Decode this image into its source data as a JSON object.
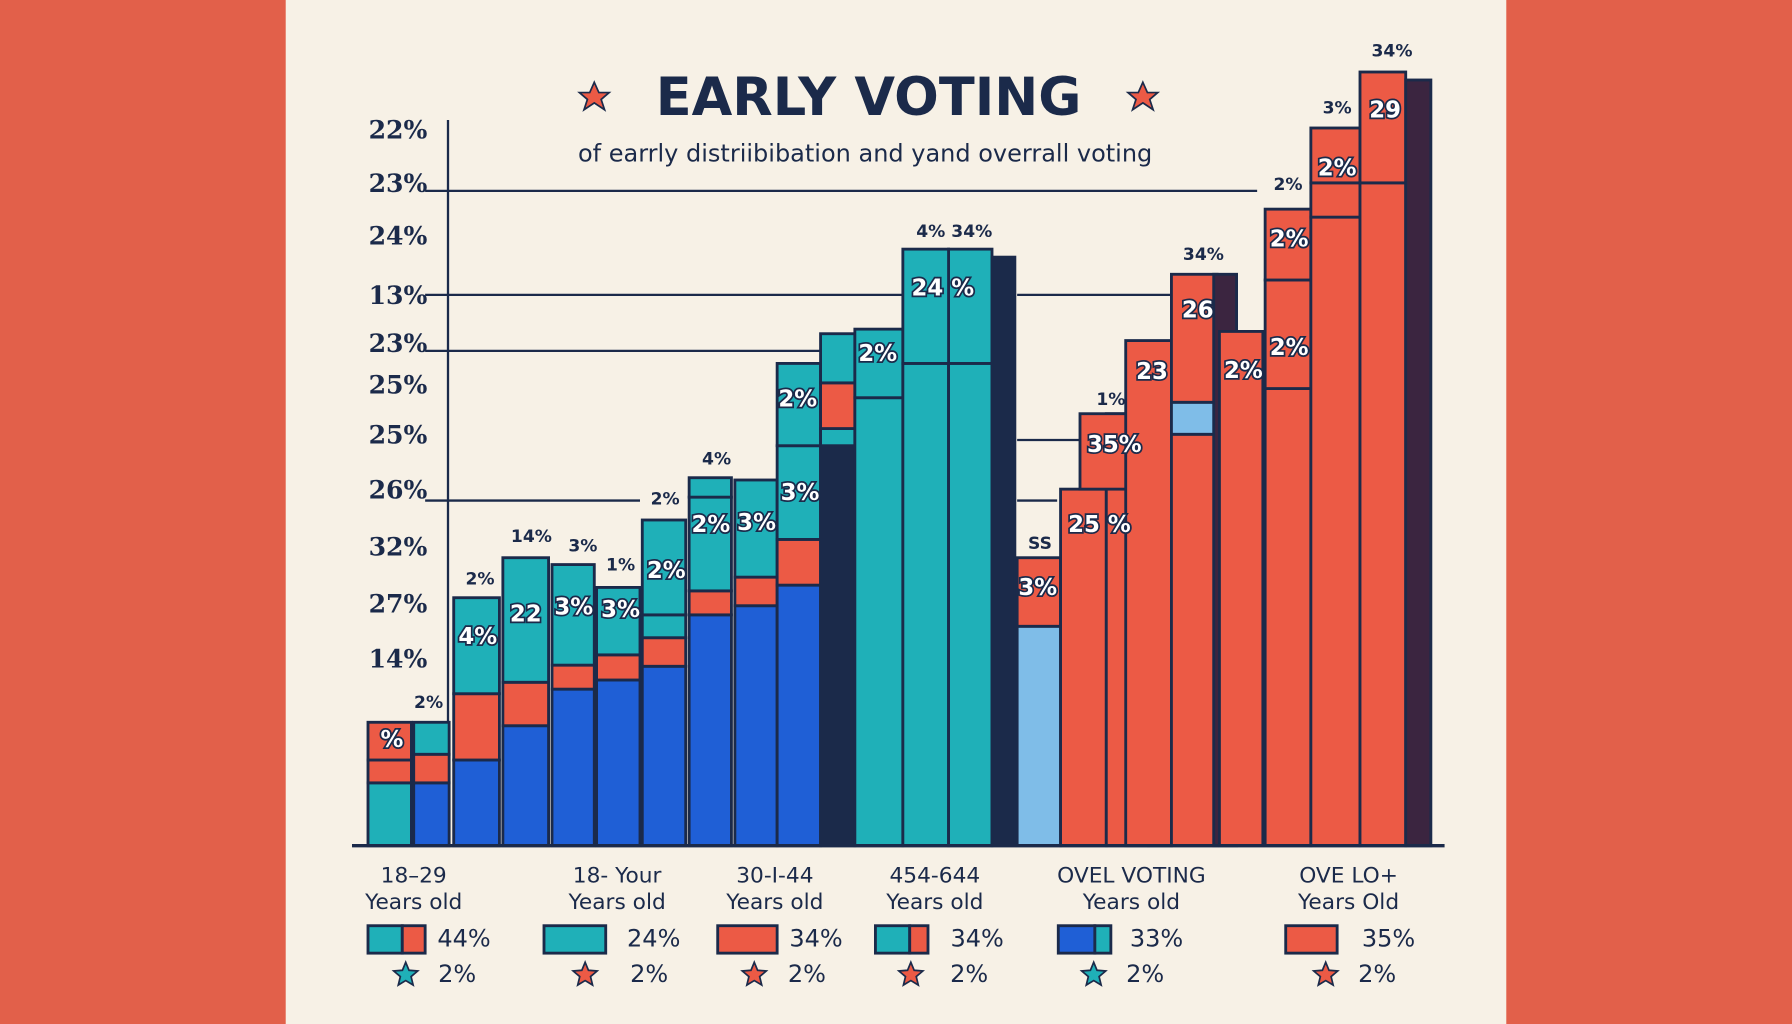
{
  "chart_data": {
    "type": "bar",
    "title": "EARLY VOTING",
    "subtitle": "of earrly  distriibibation and yand overrall voting",
    "y_labels": [
      "22%",
      "23%",
      "24%",
      "13%",
      "23%",
      "25%",
      "25%",
      "26%",
      "32%",
      "27%",
      "14%"
    ],
    "bar_labels": [
      "%",
      "4%",
      "22",
      "3%",
      "3%",
      "2%",
      "2%",
      "3%",
      "3%",
      "2%",
      "2%",
      "24 %",
      "3%",
      "25 %",
      "35%",
      "23",
      "26",
      "2%",
      "2%",
      "2%",
      "2%",
      "29"
    ],
    "top_labels": [
      "2%",
      "2%",
      "14%",
      "3%",
      "1%",
      "2%",
      "4%",
      "4% 34%",
      "SS",
      "1%",
      "34%",
      "2%",
      "3%",
      "34%"
    ],
    "categories": [
      [
        "18–29",
        "Years old"
      ],
      [
        "18- Your",
        "Years old"
      ],
      [
        "30-I-44",
        "Years old"
      ],
      [
        "454-644",
        "Years old"
      ],
      [
        "OVEL VOTING",
        "Years old"
      ],
      [
        "OVE LO+",
        "Years Old"
      ]
    ],
    "legend": [
      {
        "value": "44%",
        "note": "2%"
      },
      {
        "value": "24%",
        "note": "2%"
      },
      {
        "value": "34%",
        "note": "2%"
      },
      {
        "value": "34%",
        "note": "2%"
      },
      {
        "value": "33%",
        "note": "2%"
      },
      {
        "value": "35%",
        "note": "2%"
      }
    ]
  }
}
